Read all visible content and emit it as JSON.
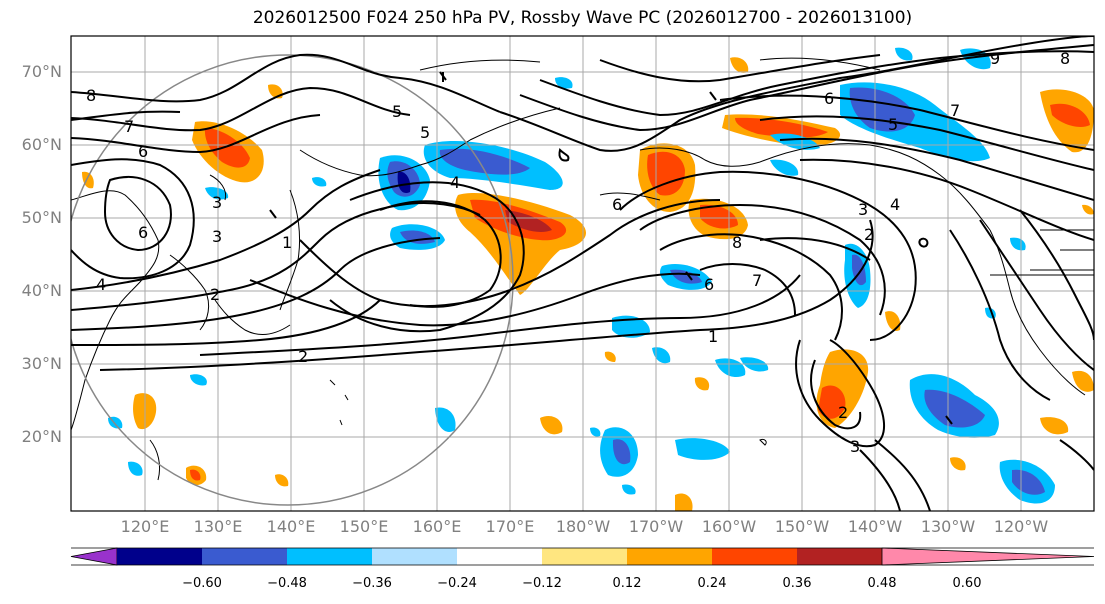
{
  "title": "2026012500 F024 250 hPa PV, Rossby Wave PC (2026012700 - 2026013100)",
  "lat_labels": [
    "70°N",
    "60°N",
    "50°N",
    "40°N",
    "30°N",
    "20°N"
  ],
  "lon_labels": [
    "120°E",
    "130°E",
    "140°E",
    "150°E",
    "160°E",
    "170°E",
    "180°W",
    "170°W",
    "160°W",
    "150°W",
    "140°W",
    "130°W",
    "120°W"
  ],
  "colorbar": {
    "colors": [
      "#9932cc",
      "#00008b",
      "#3a5bd0",
      "#00bfff",
      "#b0e0ff",
      "#ffffff",
      "#ffe680",
      "#ffa500",
      "#ff4500",
      "#b22222",
      "#ff88aa"
    ],
    "tick_labels": [
      "−0.60",
      "−0.48",
      "−0.36",
      "−0.24",
      "−0.12",
      "0.12",
      "0.24",
      "0.36",
      "0.48",
      "0.60"
    ]
  },
  "pv_contour_labels": [
    "8",
    "7",
    "6",
    "5",
    "4",
    "3",
    "2",
    "1",
    "6",
    "5",
    "4",
    "3",
    "2",
    "1",
    "9",
    "8",
    "7",
    "6",
    "5",
    "4",
    "3",
    "2",
    "8",
    "7",
    "6",
    "2",
    "3",
    "6"
  ]
}
